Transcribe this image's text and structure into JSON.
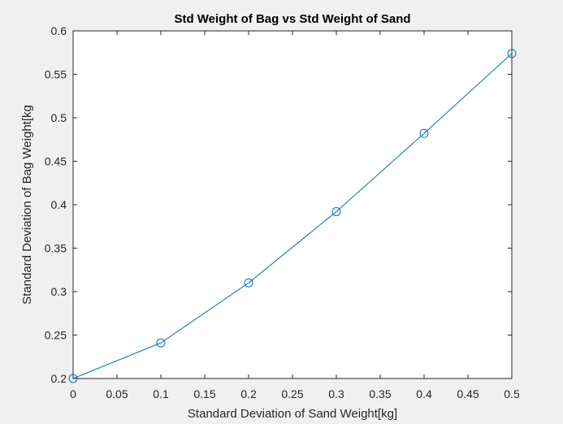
{
  "chart_data": {
    "type": "line",
    "title": "Std Weight of Bag vs Std Weight of Sand",
    "xlabel": "Standard Deviation of Sand Weight[kg]",
    "ylabel": "Standard Deviation of Bag Weight[kg",
    "xlim": [
      0,
      0.5
    ],
    "ylim": [
      0.2,
      0.6
    ],
    "xticks": [
      "0",
      "0.05",
      "0.1",
      "0.15",
      "0.2",
      "0.25",
      "0.3",
      "0.35",
      "0.4",
      "0.45",
      "0.5"
    ],
    "yticks": [
      "0.2",
      "0.25",
      "0.3",
      "0.35",
      "0.4",
      "0.45",
      "0.5",
      "0.55",
      "0.6"
    ],
    "grid": false,
    "marker": "circle",
    "series": [
      {
        "x": [
          0,
          0.1,
          0.2,
          0.3,
          0.4,
          0.5
        ],
        "y": [
          0.2,
          0.241,
          0.31,
          0.392,
          0.482,
          0.574
        ],
        "color": "#0072bd"
      }
    ]
  },
  "colors": {
    "figure_bg": "#f0f0f0",
    "axes_bg": "#ffffff",
    "axis_line": "#262626",
    "series": "#0072bd"
  }
}
